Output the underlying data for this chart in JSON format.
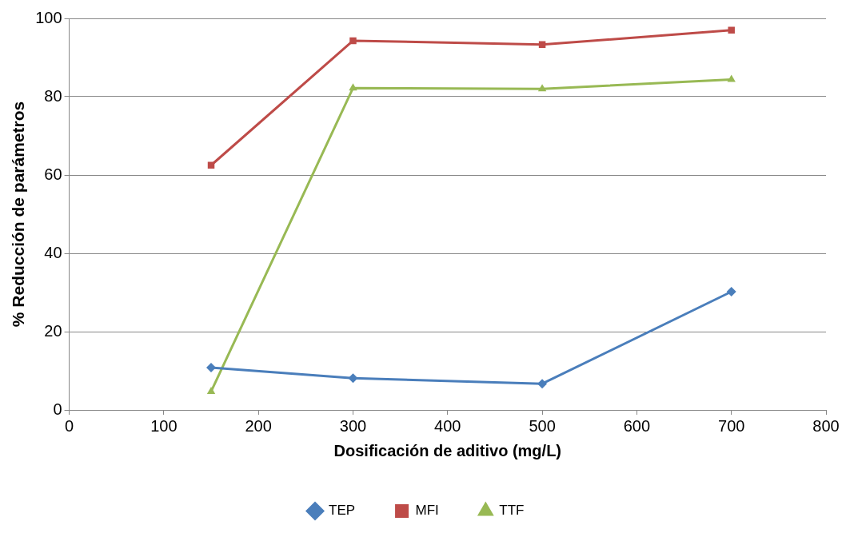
{
  "chart_data": {
    "type": "line",
    "xlabel": "Dosificación de aditivo (mg/L)",
    "ylabel": "% Reducción de parámetros",
    "x": [
      150,
      300,
      500,
      700
    ],
    "series": [
      {
        "name": "TEP",
        "color": "#4a7ebb",
        "marker": "diamond",
        "values": [
          10.8,
          8.1,
          6.7,
          30.2
        ]
      },
      {
        "name": "MFI",
        "color": "#be4b48",
        "marker": "square",
        "values": [
          62.5,
          94.3,
          93.3,
          97.0
        ]
      },
      {
        "name": "TTF",
        "color": "#98b954",
        "marker": "triangle",
        "values": [
          4.7,
          82.2,
          82.0,
          84.4
        ]
      }
    ],
    "xlim": [
      0,
      800
    ],
    "xticks": [
      0,
      100,
      200,
      300,
      400,
      500,
      600,
      700,
      800
    ],
    "ylim": [
      0,
      100
    ],
    "yticks": [
      0,
      20,
      40,
      60,
      80,
      100
    ],
    "grid": "y",
    "legend": "bottom"
  }
}
